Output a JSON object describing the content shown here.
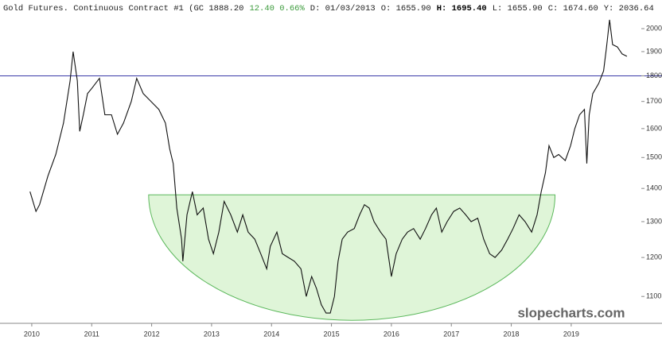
{
  "chart_data": {
    "type": "line",
    "title": [
      "Gold Futures. Continuous Contract #1 (GC 1888.20",
      "12.40 0.66%",
      "D: 01/03/2013",
      "O: 1655.90",
      "H: 1695.40",
      "L: 1655.90",
      "C: 1674.60",
      "Y: 2036.64"
    ],
    "title_colors": [
      "#222222",
      "#3a9a3a",
      "#222222",
      "#222222",
      "#000000",
      "#222222",
      "#222222",
      "#222222"
    ],
    "watermark": "slopecharts.com",
    "log_scale": true,
    "xlim": [
      2009.47,
      2020.09
    ],
    "xticks": [
      2010,
      2011,
      2012,
      2013,
      2014,
      2015,
      2016,
      2017,
      2018,
      2019
    ],
    "ylim": [
      1036,
      2132
    ],
    "yticks": [
      1100,
      1200,
      1300,
      1400,
      1500,
      1600,
      1700,
      1800,
      1900,
      2000
    ],
    "series": [
      {
        "color": "#111111",
        "x": [
          2009.97,
          2010.07,
          2010.13,
          2010.27,
          2010.4,
          2010.53,
          2010.64,
          2010.69,
          2010.76,
          2010.8,
          2010.86,
          2010.93,
          2011.0,
          2011.13,
          2011.22,
          2011.33,
          2011.43,
          2011.53,
          2011.66,
          2011.75,
          2011.86,
          2011.99,
          2012.12,
          2012.23,
          2012.3,
          2012.36,
          2012.42,
          2012.5,
          2012.52,
          2012.59,
          2012.68,
          2012.76,
          2012.86,
          2012.95,
          2013.03,
          2013.12,
          2013.21,
          2013.32,
          2013.43,
          2013.52,
          2013.61,
          2013.72,
          2013.82,
          2013.92,
          2013.98,
          2014.09,
          2014.18,
          2014.28,
          2014.38,
          2014.49,
          2014.58,
          2014.67,
          2014.75,
          2014.83,
          2014.91,
          2014.98,
          2015.05,
          2015.11,
          2015.18,
          2015.27,
          2015.38,
          2015.47,
          2015.55,
          2015.63,
          2015.71,
          2015.82,
          2015.91,
          2016.0,
          2016.08,
          2016.18,
          2016.27,
          2016.37,
          2016.48,
          2016.57,
          2016.67,
          2016.75,
          2016.84,
          2016.93,
          2017.04,
          2017.14,
          2017.24,
          2017.33,
          2017.44,
          2017.54,
          2017.64,
          2017.73,
          2017.84,
          2017.94,
          2018.03,
          2018.13,
          2018.23,
          2018.34,
          2018.43,
          2018.5,
          2018.57,
          2018.63,
          2018.71,
          2018.79,
          2018.9,
          2018.99,
          2019.06,
          2019.14,
          2019.22,
          2019.26,
          2019.3,
          2019.36,
          2019.46,
          2019.54,
          2019.59,
          2019.64,
          2019.69,
          2019.77,
          2019.85,
          2019.93
        ],
        "values": [
          1390,
          1330,
          1350,
          1440,
          1510,
          1620,
          1780,
          1900,
          1780,
          1590,
          1650,
          1730,
          1750,
          1790,
          1650,
          1650,
          1580,
          1620,
          1700,
          1790,
          1730,
          1700,
          1670,
          1620,
          1530,
          1480,
          1340,
          1250,
          1190,
          1320,
          1390,
          1320,
          1340,
          1250,
          1210,
          1270,
          1360,
          1320,
          1270,
          1320,
          1270,
          1250,
          1210,
          1170,
          1230,
          1270,
          1210,
          1200,
          1190,
          1170,
          1100,
          1150,
          1120,
          1080,
          1060,
          1060,
          1100,
          1190,
          1250,
          1270,
          1280,
          1320,
          1350,
          1340,
          1300,
          1270,
          1250,
          1150,
          1210,
          1250,
          1270,
          1280,
          1250,
          1280,
          1320,
          1340,
          1270,
          1300,
          1330,
          1340,
          1320,
          1300,
          1310,
          1250,
          1210,
          1200,
          1220,
          1250,
          1280,
          1320,
          1300,
          1270,
          1320,
          1390,
          1450,
          1540,
          1500,
          1510,
          1490,
          1540,
          1600,
          1650,
          1670,
          1480,
          1650,
          1730,
          1770,
          1820,
          1920,
          2040,
          1930,
          1920,
          1890,
          1880
        ]
      }
    ],
    "annotations": [
      {
        "type": "hline",
        "y": 1800,
        "color": "#3a3aa8"
      },
      {
        "type": "bowl",
        "x": [
          2011.95,
          2018.73
        ],
        "y": [
          1043,
          1380
        ],
        "color": "#5cb85c",
        "fill": "#dff5d8"
      }
    ]
  }
}
